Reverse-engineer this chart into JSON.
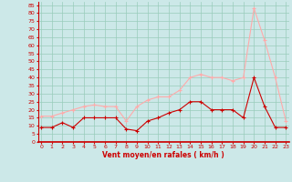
{
  "x": [
    0,
    1,
    2,
    3,
    4,
    5,
    6,
    7,
    8,
    9,
    10,
    11,
    12,
    13,
    14,
    15,
    16,
    17,
    18,
    19,
    20,
    21,
    22,
    23
  ],
  "avg_wind": [
    9,
    9,
    12,
    9,
    15,
    15,
    15,
    15,
    8,
    7,
    13,
    15,
    18,
    20,
    25,
    25,
    20,
    20,
    20,
    15,
    40,
    22,
    9,
    9
  ],
  "gust_wind": [
    16,
    16,
    18,
    20,
    22,
    23,
    22,
    22,
    13,
    22,
    26,
    28,
    28,
    32,
    40,
    42,
    40,
    40,
    38,
    40,
    83,
    63,
    40,
    13
  ],
  "avg_color": "#cc0000",
  "gust_color": "#ffaaaa",
  "bg_color": "#cce8e8",
  "grid_color": "#99ccbb",
  "xlabel": "Vent moyen/en rafales ( km/h )",
  "xlabel_color": "#cc0000",
  "tick_color": "#cc0000",
  "ylim": [
    0,
    87
  ],
  "yticks": [
    0,
    5,
    10,
    15,
    20,
    25,
    30,
    35,
    40,
    45,
    50,
    55,
    60,
    65,
    70,
    75,
    80,
    85
  ],
  "xticks": [
    0,
    1,
    2,
    3,
    4,
    5,
    6,
    7,
    8,
    9,
    10,
    11,
    12,
    13,
    14,
    15,
    16,
    17,
    18,
    19,
    20,
    21,
    22,
    23
  ]
}
